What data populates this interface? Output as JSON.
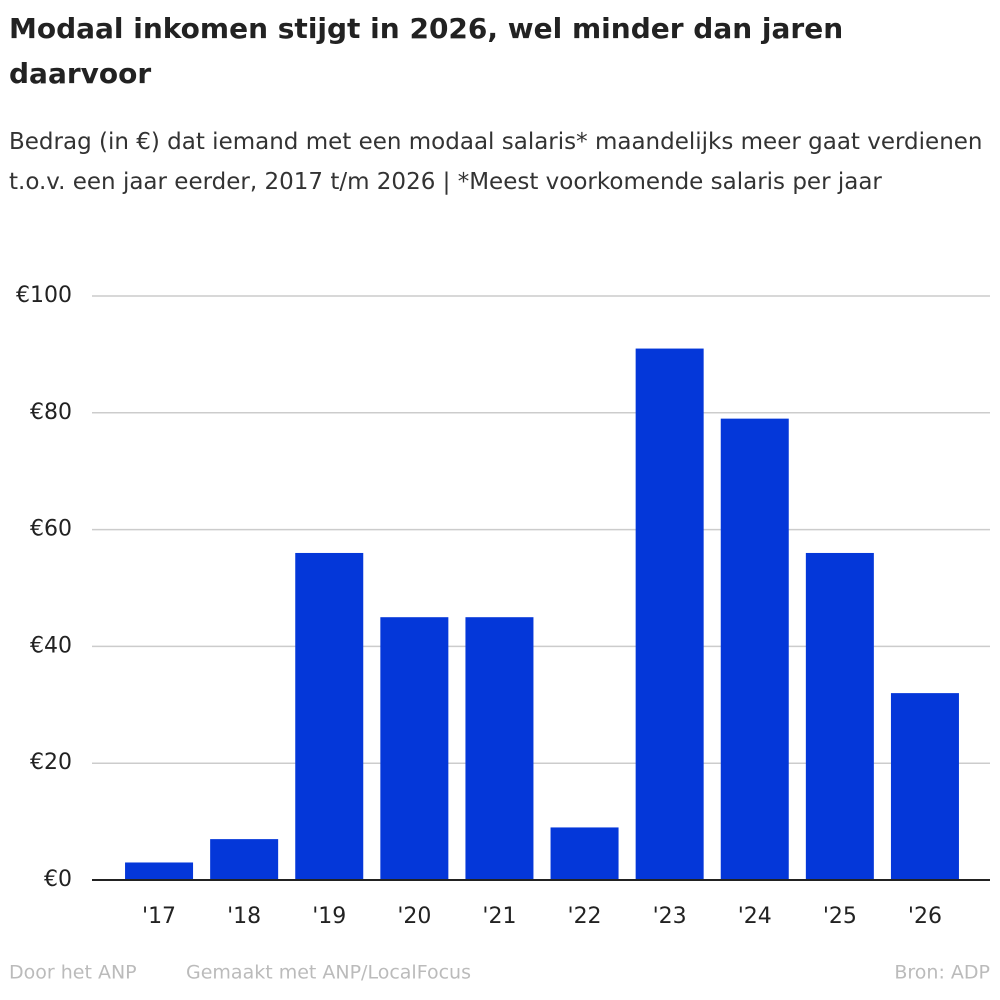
{
  "chart_data": {
    "type": "bar",
    "title": "Modaal inkomen stijgt in 2026, wel minder dan jaren daarvoor",
    "subtitle": "Bedrag (in €) dat iemand met een modaal salaris* maandelijks meer gaat verdienen t.o.v. een jaar eerder, 2017 t/m 2026 | *Meest voorkomende salaris per jaar",
    "categories": [
      "'17",
      "'18",
      "'19",
      "'20",
      "'21",
      "'22",
      "'23",
      "'24",
      "'25",
      "'26"
    ],
    "values": [
      3,
      7,
      56,
      45,
      45,
      9,
      91,
      79,
      56,
      32
    ],
    "color": "#0437d9",
    "ylim": [
      0,
      100
    ],
    "yticks": [
      {
        "value": 0,
        "label": "€0"
      },
      {
        "value": 20,
        "label": "€20"
      },
      {
        "value": 40,
        "label": "€40"
      },
      {
        "value": 60,
        "label": "€60"
      },
      {
        "value": 80,
        "label": "€80"
      },
      {
        "value": 100,
        "label": "€100"
      }
    ],
    "grid": true,
    "footer": {
      "left": "Door het ANP",
      "middle": "Gemaakt met ANP/LocalFocus",
      "right": "Bron:  ADP"
    }
  }
}
